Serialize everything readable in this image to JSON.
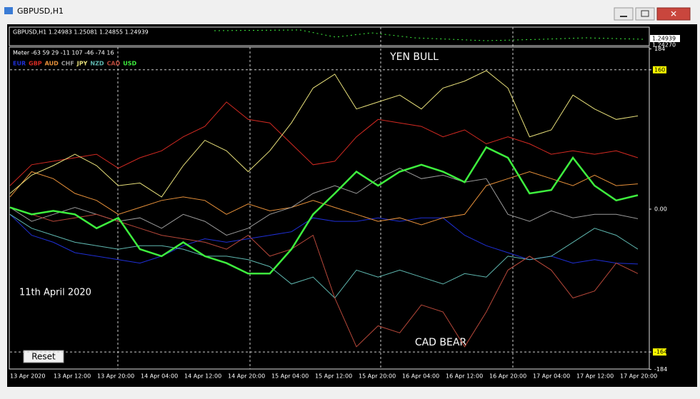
{
  "window": {
    "title": "GBPUSD,H1"
  },
  "chart": {
    "header": "GBPUSD,H1  1.24983 1.25081 1.24855 1.24939",
    "price_labels": [
      "1.24939",
      "1.24270"
    ],
    "meter": "Meter -63 59 29 -11 107 -46 -74 16",
    "annotations": {
      "yen": "YEN BULL",
      "cad": "CAD BEAR",
      "date": "11th April 2020"
    },
    "reset": "Reset",
    "ylim": [
      -184,
      184
    ],
    "yticks": [
      184,
      160,
      {
        "value": 0,
        "label": "0.00"
      },
      -164,
      -184
    ],
    "levels": [
      160,
      -164
    ],
    "x_labels": [
      "13 Apr 2020",
      "13 Apr 12:00",
      "13 Apr 20:00",
      "14 Apr 04:00",
      "14 Apr 12:00",
      "14 Apr 20:00",
      "15 Apr 04:00",
      "15 Apr 12:00",
      "15 Apr 20:00",
      "16 Apr 04:00",
      "16 Apr 12:00",
      "16 Apr 20:00",
      "17 Apr 04:00",
      "17 Apr 12:00",
      "17 Apr 20:00"
    ],
    "series": [
      {
        "name": "EUR",
        "color": "#1f2fd6",
        "values": [
          -6,
          -30,
          -38,
          -50,
          -54,
          -58,
          -62,
          -54,
          -42,
          -34,
          -38,
          -34,
          -30,
          -26,
          -10,
          -14,
          -14,
          -10,
          -14,
          -10,
          -10,
          -30,
          -42,
          -50,
          -58,
          -54,
          -62,
          -58,
          -62,
          -63
        ]
      },
      {
        "name": "GBP",
        "color": "#d42a22",
        "values": [
          27,
          51,
          55,
          59,
          63,
          47,
          59,
          67,
          83,
          95,
          123,
          103,
          99,
          75,
          51,
          55,
          83,
          103,
          99,
          95,
          83,
          91,
          75,
          83,
          75,
          63,
          67,
          63,
          67,
          59
        ]
      },
      {
        "name": "AUD",
        "color": "#e8913a",
        "values": [
          14,
          43,
          35,
          18,
          10,
          -6,
          2,
          10,
          14,
          10,
          -6,
          6,
          -2,
          2,
          10,
          2,
          -6,
          -14,
          -10,
          -18,
          -10,
          -6,
          27,
          35,
          43,
          35,
          27,
          39,
          27,
          29
        ]
      },
      {
        "name": "CHF",
        "color": "#9a9a9a",
        "values": [
          2,
          -14,
          -6,
          2,
          -6,
          -14,
          -10,
          -22,
          -6,
          -14,
          -30,
          -22,
          -6,
          2,
          18,
          27,
          18,
          35,
          47,
          35,
          39,
          31,
          35,
          -6,
          -14,
          -2,
          -10,
          -6,
          -6,
          -11
        ]
      },
      {
        "name": "JPY",
        "color": "#e8e07a",
        "values": [
          18,
          39,
          50,
          63,
          50,
          27,
          30,
          14,
          50,
          79,
          67,
          43,
          67,
          99,
          139,
          155,
          115,
          123,
          131,
          115,
          139,
          147,
          159,
          139,
          83,
          91,
          131,
          115,
          103,
          107
        ]
      },
      {
        "name": "NZD",
        "color": "#5fb8b0",
        "values": [
          -6,
          -22,
          -30,
          -38,
          -42,
          -46,
          -42,
          -42,
          -46,
          -54,
          -54,
          -58,
          -66,
          -86,
          -78,
          -102,
          -70,
          -78,
          -70,
          -78,
          -86,
          -74,
          -78,
          -54,
          -58,
          -54,
          -38,
          -22,
          -30,
          -46
        ]
      },
      {
        "name": "CAD",
        "color": "#b8483a",
        "values": [
          2,
          -6,
          -14,
          -10,
          -6,
          -14,
          -22,
          -30,
          -34,
          -38,
          -46,
          -30,
          -54,
          -46,
          -30,
          -102,
          -158,
          -134,
          -142,
          -110,
          -118,
          -158,
          -118,
          -70,
          -54,
          -70,
          -102,
          -94,
          -62,
          -74
        ]
      },
      {
        "name": "USD",
        "color": "#3ef03e",
        "values": [
          2,
          -6,
          -2,
          -6,
          -22,
          -10,
          -46,
          -54,
          -38,
          -54,
          -62,
          -74,
          -74,
          -46,
          -6,
          18,
          43,
          27,
          43,
          51,
          43,
          31,
          71,
          59,
          18,
          22,
          59,
          27,
          10,
          16
        ]
      }
    ]
  }
}
